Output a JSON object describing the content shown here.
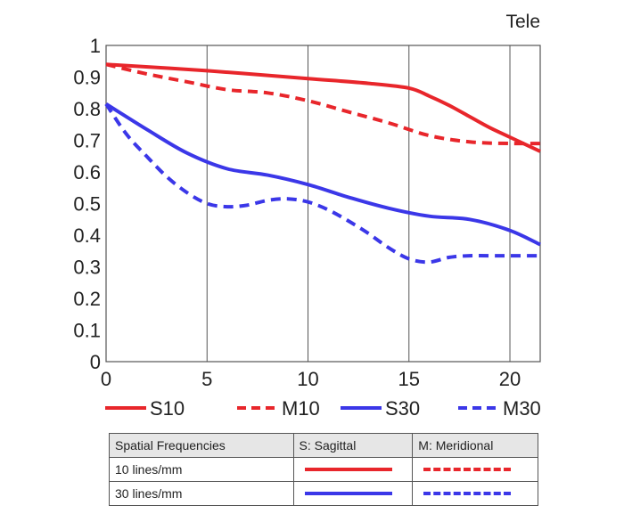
{
  "chart_data": {
    "type": "line",
    "title": "Tele",
    "xlabel": "",
    "ylabel": "",
    "xlim": [
      0,
      21.5
    ],
    "ylim": [
      0,
      1
    ],
    "x_ticks": [
      "0",
      "5",
      "10",
      "15",
      "20"
    ],
    "y_ticks": [
      "0",
      "0.1",
      "0.2",
      "0.3",
      "0.4",
      "0.5",
      "0.6",
      "0.7",
      "0.8",
      "0.9",
      "1"
    ],
    "grid": true,
    "series": [
      {
        "name": "S10",
        "color": "#e8262b",
        "dash": false,
        "x": [
          0,
          5,
          10,
          13,
          15,
          16,
          17,
          18,
          19,
          20,
          21.5
        ],
        "y": [
          0.94,
          0.92,
          0.895,
          0.88,
          0.865,
          0.84,
          0.81,
          0.775,
          0.74,
          0.71,
          0.665
        ]
      },
      {
        "name": "M10",
        "color": "#e8262b",
        "dash": true,
        "x": [
          0,
          2,
          4,
          6,
          8,
          10,
          12,
          14,
          16,
          18,
          20,
          21.5
        ],
        "y": [
          0.94,
          0.91,
          0.885,
          0.86,
          0.85,
          0.825,
          0.79,
          0.755,
          0.715,
          0.695,
          0.69,
          0.69
        ]
      },
      {
        "name": "S30",
        "color": "#3b37e8",
        "dash": false,
        "x": [
          0,
          2,
          4,
          6,
          8,
          10,
          12,
          14,
          16,
          18,
          20,
          21.5
        ],
        "y": [
          0.815,
          0.735,
          0.66,
          0.61,
          0.59,
          0.56,
          0.52,
          0.485,
          0.46,
          0.45,
          0.415,
          0.37
        ]
      },
      {
        "name": "M30",
        "color": "#3b37e8",
        "dash": true,
        "x": [
          0,
          1,
          2,
          3,
          4,
          5,
          6,
          7,
          8,
          9,
          10,
          11,
          12,
          13,
          14,
          15,
          16,
          17,
          18,
          19,
          20,
          21.5
        ],
        "y": [
          0.815,
          0.72,
          0.65,
          0.585,
          0.535,
          0.5,
          0.49,
          0.495,
          0.51,
          0.515,
          0.505,
          0.48,
          0.445,
          0.405,
          0.36,
          0.325,
          0.315,
          0.33,
          0.335,
          0.335,
          0.335,
          0.335
        ]
      }
    ]
  },
  "legend_table": {
    "headers": [
      "Spatial Frequencies",
      "S: Sagittal",
      "M: Meridional"
    ],
    "rows": [
      "10 lines/mm",
      "30 lines/mm"
    ]
  }
}
